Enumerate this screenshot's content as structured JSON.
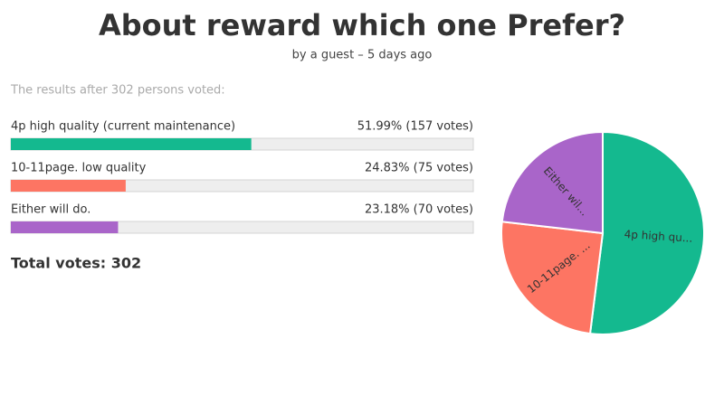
{
  "header": {
    "title": "About reward which one Prefer?",
    "byline": "by a guest – 5 days ago"
  },
  "results_intro": "The results after 302 persons voted:",
  "options": [
    {
      "label": "4p high quality (current maintenance)",
      "percent": 51.99,
      "votes": 157,
      "value_label": "51.99% (157 votes)",
      "pie_label": "4p high qu...",
      "color": "#14b98f"
    },
    {
      "label": "10-11page. low quality",
      "percent": 24.83,
      "votes": 75,
      "value_label": "24.83% (75 votes)",
      "pie_label": "10-11page. ...",
      "color": "#fd7563"
    },
    {
      "label": "Either will do.",
      "percent": 23.18,
      "votes": 70,
      "value_label": "23.18% (70 votes)",
      "pie_label": "Either wil...",
      "color": "#a965c9"
    }
  ],
  "total": "Total votes: 302"
}
